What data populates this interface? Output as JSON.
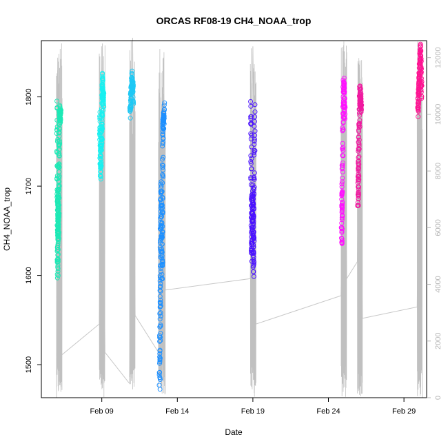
{
  "chart_data": {
    "type": "scatter",
    "title": "ORCAS RF08-19 CH4_NOAA_trop",
    "xlabel": "Date",
    "ylabel": "CH4_NOAA_trop",
    "x_range": [
      "2016-02-05T00:00",
      "2016-03-01T12:00"
    ],
    "ylim": [
      1463,
      1863
    ],
    "x_ticks": [
      {
        "date": "2016-02-09",
        "label": "Feb 09"
      },
      {
        "date": "2016-02-14",
        "label": "Feb 14"
      },
      {
        "date": "2016-02-19",
        "label": "Feb 19"
      },
      {
        "date": "2016-02-24",
        "label": "Feb 24"
      },
      {
        "date": "2016-02-29",
        "label": "Feb 29"
      }
    ],
    "y_ticks": [
      1500,
      1600,
      1700,
      1800
    ],
    "y2_range": [
      0,
      12600
    ],
    "y2_ticks": [
      0,
      2000,
      4000,
      6000,
      8000,
      10000,
      12000
    ],
    "series": [
      {
        "color": "#1de9b6",
        "flight_start": "2016-02-06T00:00",
        "flight_end": "2016-02-06T09:00",
        "points": [
          {
            "date": "2016-02-06T01:00",
            "y": 1790
          },
          {
            "date": "2016-02-06T02:00",
            "y": 1600
          },
          {
            "date": "2016-02-06T02:30",
            "y": 1690
          },
          {
            "date": "2016-02-06T03:00",
            "y": 1640
          },
          {
            "date": "2016-02-06T04:00",
            "y": 1720
          },
          {
            "date": "2016-02-06T05:00",
            "y": 1785
          },
          {
            "date": "2016-02-06T07:00",
            "y": 1780
          }
        ]
      },
      {
        "color": "#19f0f0",
        "flight_start": "2016-02-08T20:00",
        "flight_end": "2016-02-09T05:00",
        "points": [
          {
            "date": "2016-02-08T21:00",
            "y": 1780
          },
          {
            "date": "2016-02-08T22:00",
            "y": 1715
          },
          {
            "date": "2016-02-09T00:00",
            "y": 1760
          },
          {
            "date": "2016-02-09T01:00",
            "y": 1820
          },
          {
            "date": "2016-02-09T03:00",
            "y": 1790
          }
        ]
      },
      {
        "color": "#1ec8f5",
        "flight_start": "2016-02-10T20:00",
        "flight_end": "2016-02-11T05:00",
        "points": [
          {
            "date": "2016-02-10T21:00",
            "y": 1780
          },
          {
            "date": "2016-02-11T00:00",
            "y": 1822
          },
          {
            "date": "2016-02-11T02:00",
            "y": 1800
          }
        ]
      },
      {
        "color": "#1e90ff",
        "flight_start": "2016-02-12T18:00",
        "flight_end": "2016-02-13T05:00",
        "points": [
          {
            "date": "2016-02-12T20:00",
            "y": 1478
          },
          {
            "date": "2016-02-12T21:00",
            "y": 1580
          },
          {
            "date": "2016-02-12T22:00",
            "y": 1700
          },
          {
            "date": "2016-02-13T00:00",
            "y": 1600
          },
          {
            "date": "2016-02-13T01:00",
            "y": 1760
          },
          {
            "date": "2016-02-13T03:00",
            "y": 1785
          }
        ]
      },
      {
        "color": "#4b12ff",
        "flight_start": "2016-02-18T20:00",
        "flight_end": "2016-02-19T05:00",
        "points": [
          {
            "date": "2016-02-18T21:00",
            "y": 1795
          },
          {
            "date": "2016-02-18T22:00",
            "y": 1620
          },
          {
            "date": "2016-02-19T00:00",
            "y": 1700
          },
          {
            "date": "2016-02-19T01:00",
            "y": 1603
          },
          {
            "date": "2016-02-19T03:00",
            "y": 1790
          }
        ]
      },
      {
        "color": "#ff10ff",
        "flight_start": "2016-02-24T20:00",
        "flight_end": "2016-02-25T05:00",
        "points": [
          {
            "date": "2016-02-24T21:00",
            "y": 1640
          },
          {
            "date": "2016-02-24T22:00",
            "y": 1700
          },
          {
            "date": "2016-02-25T00:00",
            "y": 1820
          },
          {
            "date": "2016-02-25T02:00",
            "y": 1780
          }
        ]
      },
      {
        "color": "#f01aa0",
        "flight_start": "2016-02-25T22:00",
        "flight_end": "2016-02-26T06:00",
        "points": [
          {
            "date": "2016-02-25T23:00",
            "y": 1680
          },
          {
            "date": "2016-02-26T00:00",
            "y": 1730
          },
          {
            "date": "2016-02-26T02:00",
            "y": 1805
          },
          {
            "date": "2016-02-26T04:00",
            "y": 1790
          }
        ]
      },
      {
        "color": "#ff1493",
        "flight_start": "2016-02-29T21:00",
        "flight_end": "2016-03-01T05:00",
        "points": [
          {
            "date": "2016-02-29T22:00",
            "y": 1785
          },
          {
            "date": "2016-03-01T00:00",
            "y": 1810
          },
          {
            "date": "2016-03-01T02:00",
            "y": 1855
          },
          {
            "date": "2016-03-01T04:00",
            "y": 1800
          }
        ]
      }
    ],
    "altitude_track": [
      {
        "date": "2016-02-06T00:00",
        "alt": 0
      },
      {
        "date": "2016-02-06T02:00",
        "alt": 12000
      },
      {
        "date": "2016-02-06T08:00",
        "alt": 1500
      },
      {
        "date": "2016-02-08T20:00",
        "alt": 2600
      },
      {
        "date": "2016-02-09T01:00",
        "alt": 12500
      },
      {
        "date": "2016-02-09T05:00",
        "alt": 1600
      },
      {
        "date": "2016-02-10T20:00",
        "alt": 500
      },
      {
        "date": "2016-02-11T01:00",
        "alt": 12700
      },
      {
        "date": "2016-02-11T05:00",
        "alt": 2900
      },
      {
        "date": "2016-02-12T18:00",
        "alt": 1600
      },
      {
        "date": "2016-02-13T02:00",
        "alt": 12000
      },
      {
        "date": "2016-02-13T05:00",
        "alt": 3800
      },
      {
        "date": "2016-02-18T20:00",
        "alt": 4200
      },
      {
        "date": "2016-02-19T00:00",
        "alt": 12400
      },
      {
        "date": "2016-02-19T05:00",
        "alt": 2600
      },
      {
        "date": "2016-02-24T20:00",
        "alt": 3600
      },
      {
        "date": "2016-02-25T01:00",
        "alt": 12100
      },
      {
        "date": "2016-02-25T05:00",
        "alt": 4200
      },
      {
        "date": "2016-02-25T22:00",
        "alt": 4800
      },
      {
        "date": "2016-02-26T02:00",
        "alt": 11900
      },
      {
        "date": "2016-02-26T06:00",
        "alt": 2800
      },
      {
        "date": "2016-02-29T21:00",
        "alt": 3200
      },
      {
        "date": "2016-03-01T02:00",
        "alt": 12400
      },
      {
        "date": "2016-03-01T05:00",
        "alt": 0
      }
    ],
    "grid": false,
    "legend": "none"
  }
}
